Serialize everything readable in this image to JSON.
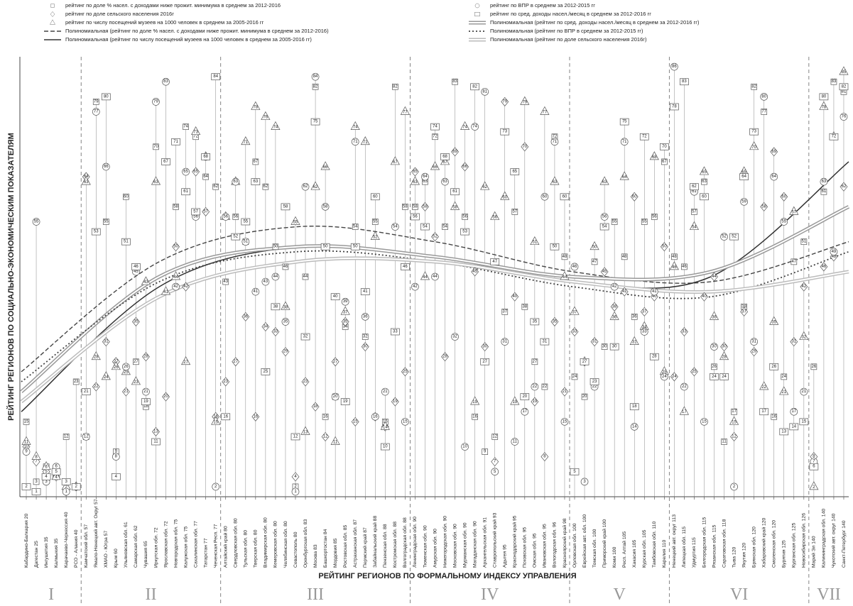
{
  "chart_data": {
    "type": "scatter",
    "y_label": "РЕЙТИНГ РЕГИОНОВ ПО СОЦИАЛЬНО-ЭКОНОМИЧЕСКИМ ПОКАЗАТЕЛЯМ",
    "x_label": "РЕЙТИНГ РЕГИОНОВ ПО ФОРМАЛЬНОМУ ИНДЕКСУ УПРАВЛЕНИЯ",
    "ylim": [
      0,
      88
    ],
    "xlim": [
      20,
      140
    ],
    "groups": [
      {
        "name": "I",
        "categories": [
          "Кабардино-Балкария 20",
          "Дагестан 25",
          "Ингушетия 35",
          "Калмыкия 35",
          "Карачаево-Черкессия 40",
          "РСО - Алания 40"
        ]
      },
      {
        "name": "II",
        "categories": [
          "Камчатский обл. 57",
          "Ямало-Ненецкий авт. Округ 57",
          "ХМАО - Югра 57",
          "Крым 60",
          "Ульяновская обл. 61",
          "Самарская обл. 62",
          "Чувашия 65",
          "Иркутская обл. 72",
          "Ярославская обл. 72",
          "Новгородская обл. 75",
          "Калужская обл. 75",
          "Сахалинская обл. 77",
          "Татарстан 77",
          "Чеченская Респ. 77"
        ]
      },
      {
        "name": "III",
        "categories": [
          "Алтайский край 80",
          "Свердловская обл. 80",
          "Тульская обл. 80",
          "Тверская обл. 80",
          "Владимирская обл. 80",
          "Кемеровская обл. 80",
          "Челябинская обл. 80",
          "Севастополь 80",
          "Оренбургская обл. 83",
          "Москва 83",
          "Башкортостан 84",
          "Мордовия 85",
          "Ростовская обл. 85",
          "Астраханская обл. 87",
          "Пермский край 87",
          "Забайкальский край 88",
          "Пензенская обл. 88",
          "Костромская обл. 88",
          "Волгоградская обл. 88"
        ]
      },
      {
        "name": "IV",
        "categories": [
          "Ленинградская обл. 90",
          "Тюменская обл. 90",
          "Амурская обл. 90",
          "Нижегородская обл. 90",
          "Московская обл. 90",
          "Мурманская обл. 90",
          "Магаданская обл. 90",
          "Архангельская обл. 91",
          "Ставропольский край 93",
          "Адыгея 95",
          "Краснодарский край 95",
          "Псковская обл. 95",
          "Омская обл. 95",
          "Ивановская обл. 95",
          "Вологодская обл. 96",
          "Красноярский край 98"
        ]
      },
      {
        "name": "V",
        "categories": [
          "Орловская обл. 100",
          "Еврейская авт. обл. 100",
          "Томская обл. 100",
          "Приморский край 100",
          "Коми 100",
          "Респ. Алтай 105",
          "Хакасия 105",
          "Курская обл. 105",
          "Тамбовская обл. 110",
          "Карелия 110"
        ]
      },
      {
        "name": "VI",
        "categories": [
          "Ненецкий авт. округ 113",
          "Липецкая обл. 115",
          "Удмуртия 115",
          "Белгородская обл. 115",
          "Рязанская обл. 115",
          "Саратовская обл. 118",
          "Тыва 120",
          "Якутия 120",
          "Брянская обл. 120",
          "Хабаровский край 120",
          "Смоленская обл. 120",
          "Бурятия 125",
          "Курганская обл. 125",
          "Новосибирская обл. 126"
        ]
      },
      {
        "name": "VII",
        "categories": [
          "Марий Эл 140",
          "Калининградская обл. 140",
          "Чукотский авт. округ 140",
          "Санкт-Петербург 140"
        ]
      }
    ],
    "series": [
      {
        "name": "рейтинг по доле % насел. с доходами ниже прожит. минимума в среднем за 2012-2016",
        "marker": "square",
        "color": "#555",
        "values": [
          15,
          3,
          6,
          4,
          12,
          23,
          12,
          79,
          55,
          9,
          60,
          27,
          18,
          70,
          67,
          58,
          74,
          72,
          64,
          62,
          43,
          56,
          51,
          67,
          62,
          50,
          46,
          2,
          44,
          82,
          16,
          20,
          34,
          54,
          32,
          55,
          15,
          82,
          58,
          58,
          63,
          72,
          54,
          83,
          56,
          16,
          9,
          12,
          37,
          57,
          38,
          27,
          22,
          72,
          48,
          24,
          20,
          47,
          30,
          55,
          48,
          36,
          55,
          56,
          67,
          48,
          46,
          57,
          63,
          26,
          11,
          17,
          38,
          82,
          77,
          16,
          24,
          47,
          51,
          26,
          61,
          83,
          81
        ]
      },
      {
        "name": "рейтинг по доле сельского населения 2016г",
        "marker": "diamond",
        "color": "#555",
        "values": [
          10,
          7,
          5,
          4,
          1,
          2,
          64,
          22,
          31,
          27,
          21,
          35,
          28,
          13,
          20,
          50,
          42,
          65,
          57,
          16,
          23,
          27,
          36,
          16,
          34,
          33,
          29,
          4,
          23,
          18,
          12,
          27,
          35,
          15,
          30,
          16,
          14,
          19,
          25,
          65,
          58,
          52,
          28,
          69,
          66,
          45,
          30,
          7,
          79,
          40,
          70,
          19,
          8,
          35,
          21,
          33,
          27,
          31,
          45,
          38,
          41,
          60,
          37,
          40,
          50,
          24,
          33,
          25,
          40,
          44,
          30,
          12,
          37,
          29,
          58,
          69,
          60,
          31,
          42,
          8,
          46,
          48,
          62
        ]
      },
      {
        "name": "рейтинг по числу посещений музеев на 1000 человек в среднем за 2005-2016 гг",
        "marker": "triangle",
        "color": "#555",
        "values": [
          11,
          8,
          6,
          4,
          2,
          2,
          63,
          28,
          24,
          26,
          25,
          23,
          43,
          63,
          41,
          44,
          27,
          73,
          68,
          15,
          56,
          63,
          71,
          78,
          76,
          74,
          38,
          55,
          13,
          62,
          66,
          11,
          37,
          74,
          71,
          52,
          14,
          67,
          77,
          63,
          44,
          66,
          67,
          58,
          74,
          19,
          62,
          56,
          60,
          19,
          79,
          51,
          77,
          63,
          44,
          37,
          27,
          50,
          63,
          36,
          64,
          31,
          34,
          68,
          25,
          46,
          17,
          54,
          65,
          36,
          28,
          15,
          65,
          70,
          22,
          35,
          21,
          57,
          32,
          2,
          78,
          72,
          85
        ]
      },
      {
        "name": "Полиномиальная (рейтинг по доле % насел. с доходами ниже прожит. минимума в среднем за 2012-2016)",
        "line": "dashed",
        "color": "#444",
        "x": [
          20,
          40,
          60,
          80,
          100,
          120,
          140
        ],
        "values": [
          25,
          47,
          54,
          51,
          45,
          43,
          51
        ]
      },
      {
        "name": "Полиномиальная (рейтинг по числу посещений музеев на 1000 человек в среднем за 2005-2016 гг)",
        "line": "solid",
        "color": "#333",
        "x": [
          20,
          40,
          60,
          80,
          100,
          120,
          140
        ],
        "values": [
          17,
          42,
          50,
          48,
          43,
          44,
          67
        ]
      },
      {
        "name": "рейтинг по ВПР в среднем за 2012-2015 гг",
        "marker": "circle",
        "color": "#555",
        "values": [
          9,
          55,
          3,
          6,
          1,
          2,
          12,
          77,
          66,
          8,
          26,
          45,
          21,
          79,
          83,
          42,
          65,
          56,
          68,
          2,
          56,
          63,
          51,
          41,
          43,
          44,
          35,
          1,
          62,
          84,
          58,
          20,
          39,
          71,
          36,
          16,
          21,
          54,
          15,
          42,
          64,
          44,
          63,
          32,
          10,
          74,
          81,
          5,
          31,
          11,
          17,
          22,
          60,
          71,
          15,
          46,
          3,
          22,
          56,
          42,
          71,
          14,
          33,
          41,
          24,
          86,
          22,
          61,
          15,
          30,
          52,
          2,
          59,
          31,
          80,
          64,
          55,
          17,
          21,
          7,
          63,
          49,
          76
        ]
      },
      {
        "name": "рейтинг по сред. доходы насел./месяц в среднем за 2012-2016 гг",
        "marker": "rect",
        "color": "#555",
        "values": [
          2,
          1,
          4,
          5,
          3,
          2,
          21,
          53,
          80,
          4,
          51,
          46,
          19,
          11,
          67,
          71,
          61,
          57,
          68,
          84,
          16,
          52,
          55,
          63,
          25,
          38,
          58,
          12,
          32,
          75,
          50,
          40,
          19,
          50,
          41,
          60,
          10,
          33,
          46,
          56,
          54,
          74,
          68,
          61,
          53,
          82,
          27,
          47,
          73,
          65,
          20,
          35,
          31,
          50,
          60,
          5,
          27,
          23,
          54,
          30,
          75,
          18,
          72,
          28,
          70,
          78,
          83,
          62,
          60,
          24,
          24,
          52,
          64,
          73,
          17,
          26,
          13,
          14,
          15,
          6,
          80,
          72,
          82
        ]
      },
      {
        "name": "Полиномиальная (рейтинг по сред. доходы насел./месяц в среднем за 2012-2016 гг)",
        "line": "double",
        "color": "#999",
        "x": [
          20,
          40,
          60,
          80,
          100,
          120,
          140
        ],
        "values": [
          21,
          44,
          50,
          48,
          44,
          45,
          58
        ]
      },
      {
        "name": "Полиномиальная (рейтинг по ВПР в среднем за 2012-2015 гг)",
        "line": "dotted",
        "color": "#444",
        "x": [
          20,
          40,
          60,
          80,
          100,
          120,
          140
        ],
        "values": [
          23,
          43,
          49,
          47,
          42,
          40,
          49
        ]
      },
      {
        "name": "Полиномиальная (рейтинг по доле сельского населения 2016г)",
        "line": "double",
        "color": "#bbb",
        "x": [
          20,
          40,
          60,
          80,
          100,
          120,
          140
        ],
        "values": [
          19,
          40,
          47,
          47,
          43,
          41,
          45
        ]
      }
    ]
  }
}
